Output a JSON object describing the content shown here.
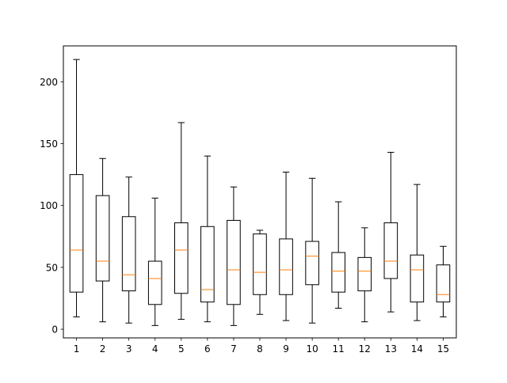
{
  "chart_data": {
    "type": "box",
    "categories": [
      "1",
      "2",
      "3",
      "4",
      "5",
      "6",
      "7",
      "8",
      "9",
      "10",
      "11",
      "12",
      "13",
      "14",
      "15"
    ],
    "boxes": [
      {
        "whisker_low": 10,
        "q1": 30,
        "median": 64,
        "q3": 125,
        "whisker_high": 218
      },
      {
        "whisker_low": 6,
        "q1": 39,
        "median": 55,
        "q3": 108,
        "whisker_high": 138
      },
      {
        "whisker_low": 5,
        "q1": 31,
        "median": 44,
        "q3": 91,
        "whisker_high": 123
      },
      {
        "whisker_low": 3,
        "q1": 20,
        "median": 41,
        "q3": 55,
        "whisker_high": 106
      },
      {
        "whisker_low": 8,
        "q1": 29,
        "median": 64,
        "q3": 86,
        "whisker_high": 167
      },
      {
        "whisker_low": 6,
        "q1": 22,
        "median": 32,
        "q3": 83,
        "whisker_high": 140
      },
      {
        "whisker_low": 3,
        "q1": 20,
        "median": 48,
        "q3": 88,
        "whisker_high": 115
      },
      {
        "whisker_low": 12,
        "q1": 28,
        "median": 46,
        "q3": 77,
        "whisker_high": 80
      },
      {
        "whisker_low": 7,
        "q1": 28,
        "median": 48,
        "q3": 73,
        "whisker_high": 127
      },
      {
        "whisker_low": 5,
        "q1": 36,
        "median": 59,
        "q3": 71,
        "whisker_high": 122
      },
      {
        "whisker_low": 17,
        "q1": 30,
        "median": 47,
        "q3": 62,
        "whisker_high": 103
      },
      {
        "whisker_low": 6,
        "q1": 31,
        "median": 47,
        "q3": 58,
        "whisker_high": 82
      },
      {
        "whisker_low": 14,
        "q1": 41,
        "median": 55,
        "q3": 86,
        "whisker_high": 143
      },
      {
        "whisker_low": 7,
        "q1": 22,
        "median": 48,
        "q3": 60,
        "whisker_high": 117
      },
      {
        "whisker_low": 10,
        "q1": 22,
        "median": 28,
        "q3": 52,
        "whisker_high": 67
      }
    ],
    "yticks": [
      0,
      50,
      100,
      150,
      200
    ],
    "ylim": [
      -7,
      229
    ],
    "xlabel": "",
    "ylabel": "",
    "title": "",
    "grid": false,
    "colors": {
      "box": "#000000",
      "median": "#ff7f0e",
      "axis": "#000000",
      "background": "#ffffff"
    }
  }
}
